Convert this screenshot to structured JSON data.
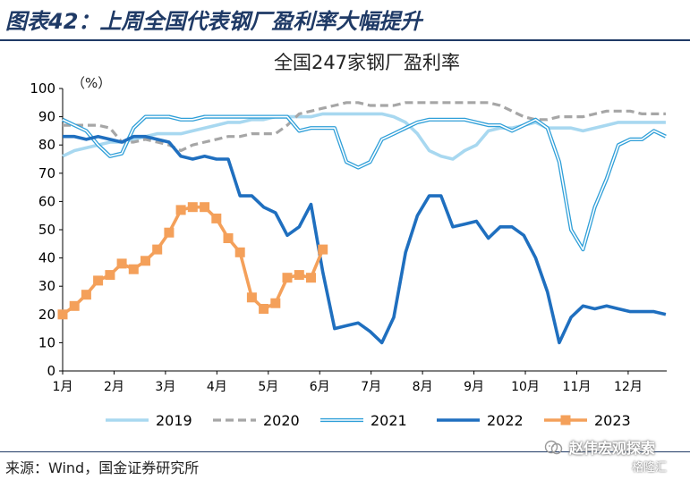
{
  "figure_title": "图表42：上周全国代表钢厂盈利率大幅提升",
  "source": "来源：Wind，国金证券研究所",
  "watermark": {
    "line1": "赵伟宏观探索",
    "line2": "格隆汇"
  },
  "chart_data": {
    "type": "line",
    "title": "全国247家钢厂盈利率",
    "yunit": "（%）",
    "ylim": [
      0,
      100
    ],
    "yticks": [
      0,
      10,
      20,
      30,
      40,
      50,
      60,
      70,
      80,
      90,
      100
    ],
    "xlim": [
      1,
      12.75
    ],
    "xticks": [
      {
        "v": 1,
        "label": "1月"
      },
      {
        "v": 2,
        "label": "2月"
      },
      {
        "v": 3,
        "label": "3月"
      },
      {
        "v": 4,
        "label": "4月"
      },
      {
        "v": 5,
        "label": "5月"
      },
      {
        "v": 6,
        "label": "6月"
      },
      {
        "v": 7,
        "label": "7月"
      },
      {
        "v": 8,
        "label": "8月"
      },
      {
        "v": 9,
        "label": "9月"
      },
      {
        "v": 10,
        "label": "10月"
      },
      {
        "v": 11,
        "label": "11月"
      },
      {
        "v": 12,
        "label": "12月"
      }
    ],
    "legend_position": "bottom",
    "series": [
      {
        "name": "2019",
        "color": "#a8d8f0",
        "style": "solid-thick",
        "x": [
          1,
          1.23,
          1.46,
          1.69,
          1.92,
          2.15,
          2.38,
          2.61,
          2.84,
          3.07,
          3.3,
          3.53,
          3.76,
          3.99,
          4.22,
          4.45,
          4.68,
          4.91,
          5.14,
          5.37,
          5.6,
          5.83,
          6.06,
          6.29,
          6.52,
          6.75,
          6.98,
          7.21,
          7.44,
          7.67,
          7.9,
          8.13,
          8.36,
          8.59,
          8.82,
          9.05,
          9.28,
          9.51,
          9.74,
          9.97,
          10.2,
          10.43,
          10.66,
          10.89,
          11.12,
          11.35,
          11.58,
          11.81,
          12.04,
          12.27,
          12.5,
          12.73
        ],
        "y": [
          76,
          78,
          79,
          80,
          81,
          81,
          82,
          83,
          84,
          84,
          84,
          85,
          86,
          87,
          88,
          88,
          89,
          89,
          90,
          90,
          90,
          90,
          91,
          91,
          91,
          91,
          91,
          91,
          90,
          88,
          84,
          78,
          76,
          75,
          78,
          80,
          85,
          86,
          86,
          87,
          88,
          86,
          86,
          86,
          85,
          86,
          87,
          88,
          88,
          88,
          88,
          88
        ]
      },
      {
        "name": "2020",
        "color": "#a6a6a6",
        "style": "dashed",
        "x": [
          1,
          1.23,
          1.46,
          1.69,
          1.92,
          2.15,
          2.38,
          2.61,
          2.84,
          3.07,
          3.3,
          3.53,
          3.76,
          3.99,
          4.22,
          4.45,
          4.68,
          4.91,
          5.14,
          5.37,
          5.6,
          5.83,
          6.06,
          6.29,
          6.52,
          6.75,
          6.98,
          7.21,
          7.44,
          7.67,
          7.9,
          8.13,
          8.36,
          8.59,
          8.82,
          9.05,
          9.28,
          9.51,
          9.74,
          9.97,
          10.2,
          10.43,
          10.66,
          10.89,
          11.12,
          11.35,
          11.58,
          11.81,
          12.04,
          12.27,
          12.5,
          12.73
        ],
        "y": [
          87,
          87,
          87,
          87,
          86,
          81,
          81,
          82,
          81,
          80,
          78,
          80,
          81,
          82,
          83,
          83,
          84,
          84,
          84,
          87,
          91,
          92,
          93,
          94,
          95,
          95,
          94,
          94,
          94,
          95,
          95,
          95,
          95,
          95,
          95,
          95,
          95,
          94,
          92,
          90,
          89,
          89,
          90,
          90,
          90,
          91,
          92,
          92,
          92,
          91,
          91,
          91
        ]
      },
      {
        "name": "2021",
        "color": "#2f9fd8",
        "style": "double",
        "x": [
          1,
          1.23,
          1.46,
          1.69,
          1.92,
          2.15,
          2.38,
          2.61,
          2.84,
          3.07,
          3.3,
          3.53,
          3.76,
          3.99,
          4.22,
          4.45,
          4.68,
          4.91,
          5.14,
          5.37,
          5.6,
          5.83,
          6.06,
          6.29,
          6.52,
          6.75,
          6.98,
          7.21,
          7.44,
          7.67,
          7.9,
          8.13,
          8.36,
          8.59,
          8.82,
          9.05,
          9.28,
          9.51,
          9.74,
          9.97,
          10.2,
          10.43,
          10.66,
          10.89,
          11.12,
          11.35,
          11.58,
          11.81,
          12.04,
          12.27,
          12.5,
          12.73
        ],
        "y": [
          89,
          87,
          85,
          80,
          76,
          77,
          86,
          90,
          90,
          90,
          89,
          89,
          90,
          90,
          90,
          90,
          90,
          90,
          90,
          90,
          85,
          86,
          86,
          86,
          74,
          72,
          74,
          82,
          84,
          86,
          88,
          89,
          89,
          89,
          89,
          88,
          87,
          87,
          85,
          87,
          89,
          86,
          74,
          50,
          43,
          58,
          68,
          80,
          82,
          82,
          85,
          83
        ]
      },
      {
        "name": "2022",
        "color": "#1f6fbf",
        "style": "solid-thick",
        "x": [
          1,
          1.23,
          1.46,
          1.69,
          1.92,
          2.15,
          2.38,
          2.61,
          2.84,
          3.07,
          3.3,
          3.53,
          3.76,
          3.99,
          4.22,
          4.45,
          4.68,
          4.91,
          5.14,
          5.37,
          5.6,
          5.83,
          6.06,
          6.29,
          6.52,
          6.75,
          6.98,
          7.21,
          7.44,
          7.67,
          7.9,
          8.13,
          8.36,
          8.59,
          8.82,
          9.05,
          9.28,
          9.51,
          9.74,
          9.97,
          10.2,
          10.43,
          10.66,
          10.89,
          11.12,
          11.35,
          11.58,
          11.81,
          12.04,
          12.27,
          12.5,
          12.73
        ],
        "y": [
          83,
          83,
          82,
          83,
          82,
          81,
          83,
          83,
          82,
          81,
          76,
          75,
          76,
          75,
          75,
          62,
          62,
          58,
          56,
          48,
          51,
          59,
          35,
          15,
          16,
          17,
          14,
          10,
          19,
          42,
          55,
          62,
          62,
          51,
          52,
          53,
          47,
          51,
          51,
          48,
          40,
          28,
          10,
          19,
          23,
          22,
          23,
          22,
          21,
          21,
          21,
          20
        ]
      },
      {
        "name": "2023",
        "color": "#f4a05a",
        "style": "solid-square",
        "x": [
          1,
          1.23,
          1.46,
          1.69,
          1.92,
          2.15,
          2.38,
          2.61,
          2.84,
          3.07,
          3.3,
          3.53,
          3.76,
          3.99,
          4.22,
          4.45,
          4.68,
          4.91,
          5.14,
          5.37,
          5.6,
          5.83,
          6.06
        ],
        "y": [
          20,
          23,
          27,
          32,
          34,
          38,
          36,
          39,
          43,
          49,
          57,
          58,
          58,
          54,
          47,
          42,
          26,
          22,
          24,
          33,
          34,
          33,
          43
        ]
      }
    ]
  }
}
